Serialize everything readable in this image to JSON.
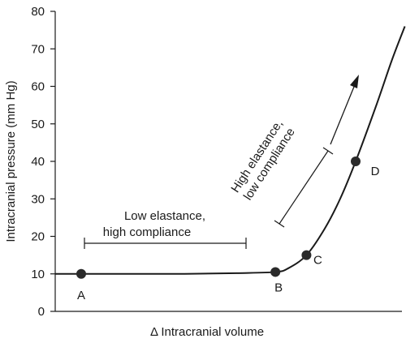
{
  "chart_data": {
    "type": "line",
    "title": "",
    "xlabel": "Δ Intracranial volume",
    "ylabel": "Intracranial pressure (mm Hg)",
    "ylim": [
      0,
      80
    ],
    "y_ticks": [
      "0",
      "10",
      "20",
      "30",
      "40",
      "50",
      "60",
      "70",
      "80"
    ],
    "x_ticks": [],
    "grid": false,
    "legend": "none",
    "colors": {
      "line": "#1a1a1a",
      "points": "#2a2a2a"
    },
    "series": [
      {
        "values_note": "",
        "curve": [
          {
            "x": 0.0,
            "y": 10.0
          },
          {
            "x": 0.25,
            "y": 10.0
          },
          {
            "x": 0.5,
            "y": 10.0
          },
          {
            "x": 0.7,
            "y": 10.2
          },
          {
            "x": 0.85,
            "y": 10.5
          },
          {
            "x": 0.9,
            "y": 11.5
          },
          {
            "x": 0.97,
            "y": 15.0
          },
          {
            "x": 1.04,
            "y": 22.0
          },
          {
            "x": 1.1,
            "y": 30.0
          },
          {
            "x": 1.16,
            "y": 40.0
          },
          {
            "x": 1.24,
            "y": 55.0
          },
          {
            "x": 1.3,
            "y": 67.0
          },
          {
            "x": 1.35,
            "y": 76.0
          }
        ]
      }
    ],
    "points": [
      {
        "label": "A",
        "x": 0.1,
        "y": 10.0
      },
      {
        "label": "B",
        "x": 0.85,
        "y": 10.5
      },
      {
        "label": "C",
        "x": 0.97,
        "y": 15.0
      },
      {
        "label": "D",
        "x": 1.16,
        "y": 40.0
      }
    ],
    "annotations": [
      {
        "lines": [
          "Low elastance,",
          "high compliance"
        ]
      },
      {
        "lines": [
          "High elastance,",
          "low compliance"
        ]
      }
    ]
  }
}
